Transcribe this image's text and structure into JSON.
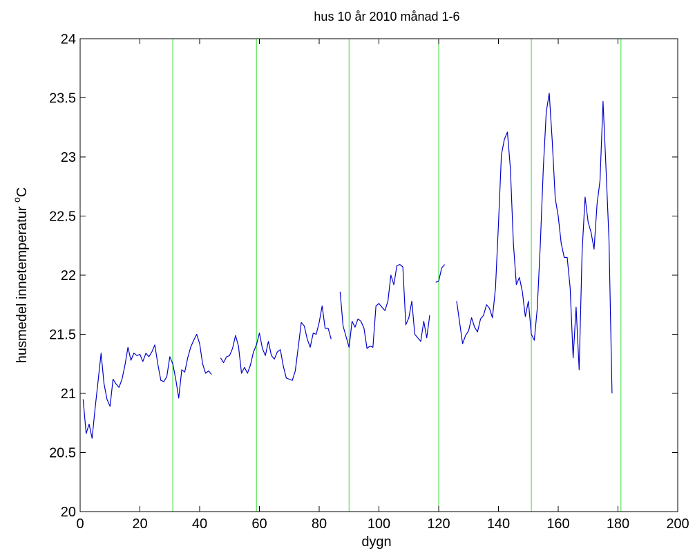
{
  "chart_data": {
    "type": "line",
    "title": "hus 10  år 2010  månad 1-6",
    "xlabel": "dygn",
    "ylabel": "husmedel innetemperatur  ",
    "ylabel_unit_sup": "o",
    "ylabel_unit": "C",
    "xlim": [
      0,
      200
    ],
    "ylim": [
      20,
      24
    ],
    "xticks": [
      0,
      20,
      40,
      60,
      80,
      100,
      120,
      140,
      160,
      180,
      200
    ],
    "yticks": [
      20,
      20.5,
      21,
      21.5,
      22,
      22.5,
      23,
      23.5,
      24
    ],
    "xtick_labels": [
      "0",
      "20",
      "40",
      "60",
      "80",
      "100",
      "120",
      "140",
      "160",
      "180",
      "200"
    ],
    "ytick_labels": [
      "20",
      "20.5",
      "21",
      "21.5",
      "22",
      "22.5",
      "23",
      "23.5",
      "24"
    ],
    "grid": false,
    "colors": {
      "series": "#0000cc",
      "month_lines": "#33dd33",
      "axis": "#000000"
    },
    "month_boundaries": [
      31,
      59,
      90,
      120,
      151,
      181
    ],
    "series": [
      {
        "segments": [
          [
            [
              1,
              20.95
            ],
            [
              2,
              20.66
            ],
            [
              3,
              20.74
            ],
            [
              4,
              20.62
            ],
            [
              5,
              20.87
            ],
            [
              6,
              21.1
            ],
            [
              7,
              21.34
            ],
            [
              8,
              21.08
            ],
            [
              9,
              20.95
            ],
            [
              10,
              20.89
            ],
            [
              11,
              21.12
            ],
            [
              12,
              21.08
            ],
            [
              13,
              21.05
            ],
            [
              14,
              21.12
            ],
            [
              15,
              21.24
            ],
            [
              16,
              21.39
            ],
            [
              17,
              21.28
            ],
            [
              18,
              21.34
            ],
            [
              19,
              21.32
            ],
            [
              20,
              21.33
            ],
            [
              21,
              21.27
            ],
            [
              22,
              21.34
            ],
            [
              23,
              21.31
            ],
            [
              24,
              21.35
            ],
            [
              25,
              21.41
            ],
            [
              26,
              21.25
            ],
            [
              27,
              21.11
            ],
            [
              28,
              21.1
            ],
            [
              29,
              21.14
            ],
            [
              30,
              21.31
            ],
            [
              31,
              21.25
            ],
            [
              32,
              21.12
            ],
            [
              33,
              20.96
            ],
            [
              34,
              21.2
            ],
            [
              35,
              21.18
            ],
            [
              36,
              21.3
            ],
            [
              37,
              21.39
            ],
            [
              38,
              21.45
            ],
            [
              39,
              21.5
            ],
            [
              40,
              21.42
            ],
            [
              41,
              21.25
            ],
            [
              42,
              21.17
            ],
            [
              43,
              21.19
            ],
            [
              44,
              21.16
            ]
          ],
          [
            [
              47,
              21.3
            ],
            [
              48,
              21.26
            ],
            [
              49,
              21.31
            ],
            [
              50,
              21.32
            ],
            [
              51,
              21.38
            ],
            [
              52,
              21.49
            ],
            [
              53,
              21.4
            ],
            [
              54,
              21.17
            ],
            [
              55,
              21.22
            ],
            [
              56,
              21.17
            ],
            [
              57,
              21.24
            ],
            [
              58,
              21.35
            ],
            [
              59,
              21.41
            ],
            [
              60,
              21.51
            ],
            [
              61,
              21.38
            ],
            [
              62,
              21.32
            ],
            [
              63,
              21.44
            ],
            [
              64,
              21.32
            ],
            [
              65,
              21.29
            ],
            [
              66,
              21.35
            ],
            [
              67,
              21.37
            ],
            [
              68,
              21.23
            ],
            [
              69,
              21.13
            ],
            [
              70,
              21.12
            ],
            [
              71,
              21.11
            ],
            [
              72,
              21.19
            ],
            [
              73,
              21.39
            ],
            [
              74,
              21.6
            ],
            [
              75,
              21.57
            ],
            [
              76,
              21.46
            ],
            [
              77,
              21.39
            ],
            [
              78,
              21.51
            ],
            [
              79,
              21.5
            ],
            [
              80,
              21.6
            ],
            [
              81,
              21.74
            ],
            [
              82,
              21.55
            ],
            [
              83,
              21.55
            ],
            [
              84,
              21.46
            ]
          ],
          [
            [
              87,
              21.86
            ],
            [
              88,
              21.57
            ],
            [
              89,
              21.48
            ],
            [
              90,
              21.39
            ],
            [
              91,
              21.61
            ],
            [
              92,
              21.56
            ],
            [
              93,
              21.63
            ],
            [
              94,
              21.61
            ],
            [
              95,
              21.55
            ],
            [
              96,
              21.38
            ],
            [
              97,
              21.4
            ],
            [
              98,
              21.39
            ],
            [
              99,
              21.74
            ],
            [
              100,
              21.76
            ],
            [
              101,
              21.73
            ],
            [
              102,
              21.7
            ],
            [
              103,
              21.78
            ],
            [
              104,
              22.0
            ],
            [
              105,
              21.92
            ],
            [
              106,
              22.08
            ],
            [
              107,
              22.09
            ],
            [
              108,
              22.07
            ],
            [
              109,
              21.58
            ],
            [
              110,
              21.64
            ],
            [
              111,
              21.78
            ],
            [
              112,
              21.5
            ],
            [
              113,
              21.47
            ],
            [
              114,
              21.44
            ],
            [
              115,
              21.61
            ],
            [
              116,
              21.47
            ],
            [
              117,
              21.66
            ]
          ],
          [
            [
              119,
              21.94
            ],
            [
              120,
              21.95
            ],
            [
              121,
              22.06
            ],
            [
              122,
              22.09
            ]
          ],
          [
            [
              126,
              21.78
            ],
            [
              127,
              21.6
            ],
            [
              128,
              21.42
            ],
            [
              129,
              21.49
            ],
            [
              130,
              21.53
            ],
            [
              131,
              21.64
            ],
            [
              132,
              21.56
            ],
            [
              133,
              21.52
            ],
            [
              134,
              21.63
            ],
            [
              135,
              21.66
            ],
            [
              136,
              21.75
            ],
            [
              137,
              21.72
            ],
            [
              138,
              21.64
            ],
            [
              139,
              21.89
            ],
            [
              140,
              22.43
            ],
            [
              141,
              23.02
            ],
            [
              142,
              23.15
            ],
            [
              143,
              23.21
            ],
            [
              144,
              22.9
            ],
            [
              145,
              22.27
            ],
            [
              146,
              21.92
            ],
            [
              147,
              21.98
            ],
            [
              148,
              21.86
            ],
            [
              149,
              21.65
            ],
            [
              150,
              21.78
            ],
            [
              151,
              21.5
            ],
            [
              152,
              21.45
            ],
            [
              153,
              21.72
            ],
            [
              154,
              22.26
            ],
            [
              155,
              22.9
            ],
            [
              156,
              23.38
            ],
            [
              157,
              23.54
            ],
            [
              158,
              23.13
            ],
            [
              159,
              22.65
            ],
            [
              160,
              22.5
            ],
            [
              161,
              22.27
            ],
            [
              162,
              22.15
            ],
            [
              163,
              22.15
            ],
            [
              164,
              21.89
            ],
            [
              165,
              21.3
            ],
            [
              166,
              21.73
            ],
            [
              167,
              21.2
            ],
            [
              168,
              22.2
            ],
            [
              169,
              22.66
            ],
            [
              170,
              22.45
            ],
            [
              171,
              22.36
            ],
            [
              172,
              22.22
            ],
            [
              173,
              22.6
            ],
            [
              174,
              22.8
            ],
            [
              175,
              23.47
            ],
            [
              176,
              22.9
            ],
            [
              177,
              22.3
            ],
            [
              178,
              21.0
            ]
          ]
        ]
      }
    ]
  }
}
